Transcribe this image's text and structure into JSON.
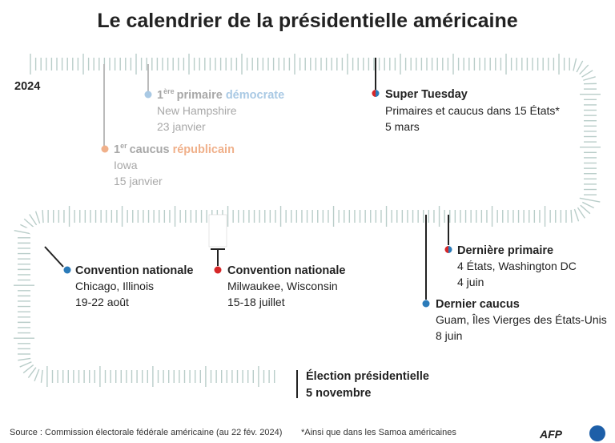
{
  "title": "Le calendrier de la présidentielle américaine",
  "year": "2024",
  "events": [
    {
      "ordinal": "1",
      "ordinal_suffix": "ère",
      "label": "primaire",
      "party": "démocrate",
      "place": "New Hampshire",
      "date": "23 janvier"
    },
    {
      "ordinal": "1",
      "ordinal_suffix": "er",
      "label": "caucus",
      "party": "républicain",
      "place": "Iowa",
      "date": "15 janvier"
    },
    {
      "label": "Super Tuesday",
      "place": "Primaires et caucus dans 15 États*",
      "date": "5 mars"
    },
    {
      "label": "Dernière primaire",
      "place": "4 États, Washington DC",
      "date": "4 juin"
    },
    {
      "label": "Dernier caucus",
      "place": "Guam, Îles Vierges des États-Unis",
      "date": "8 juin"
    },
    {
      "label": "Convention nationale",
      "place": "Milwaukee, Wisconsin",
      "date": "15-18 juillet"
    },
    {
      "label": "Convention nationale",
      "place": "Chicago, Illinois",
      "date": "19-22 août"
    },
    {
      "label": "Élection présidentielle",
      "date": "5 novembre"
    }
  ],
  "source": "Source : Commission électorale fédérale américaine (au 22 fév. 2024)",
  "note": "*Ainsi que dans les Samoa américaines",
  "logo": "AFP"
}
